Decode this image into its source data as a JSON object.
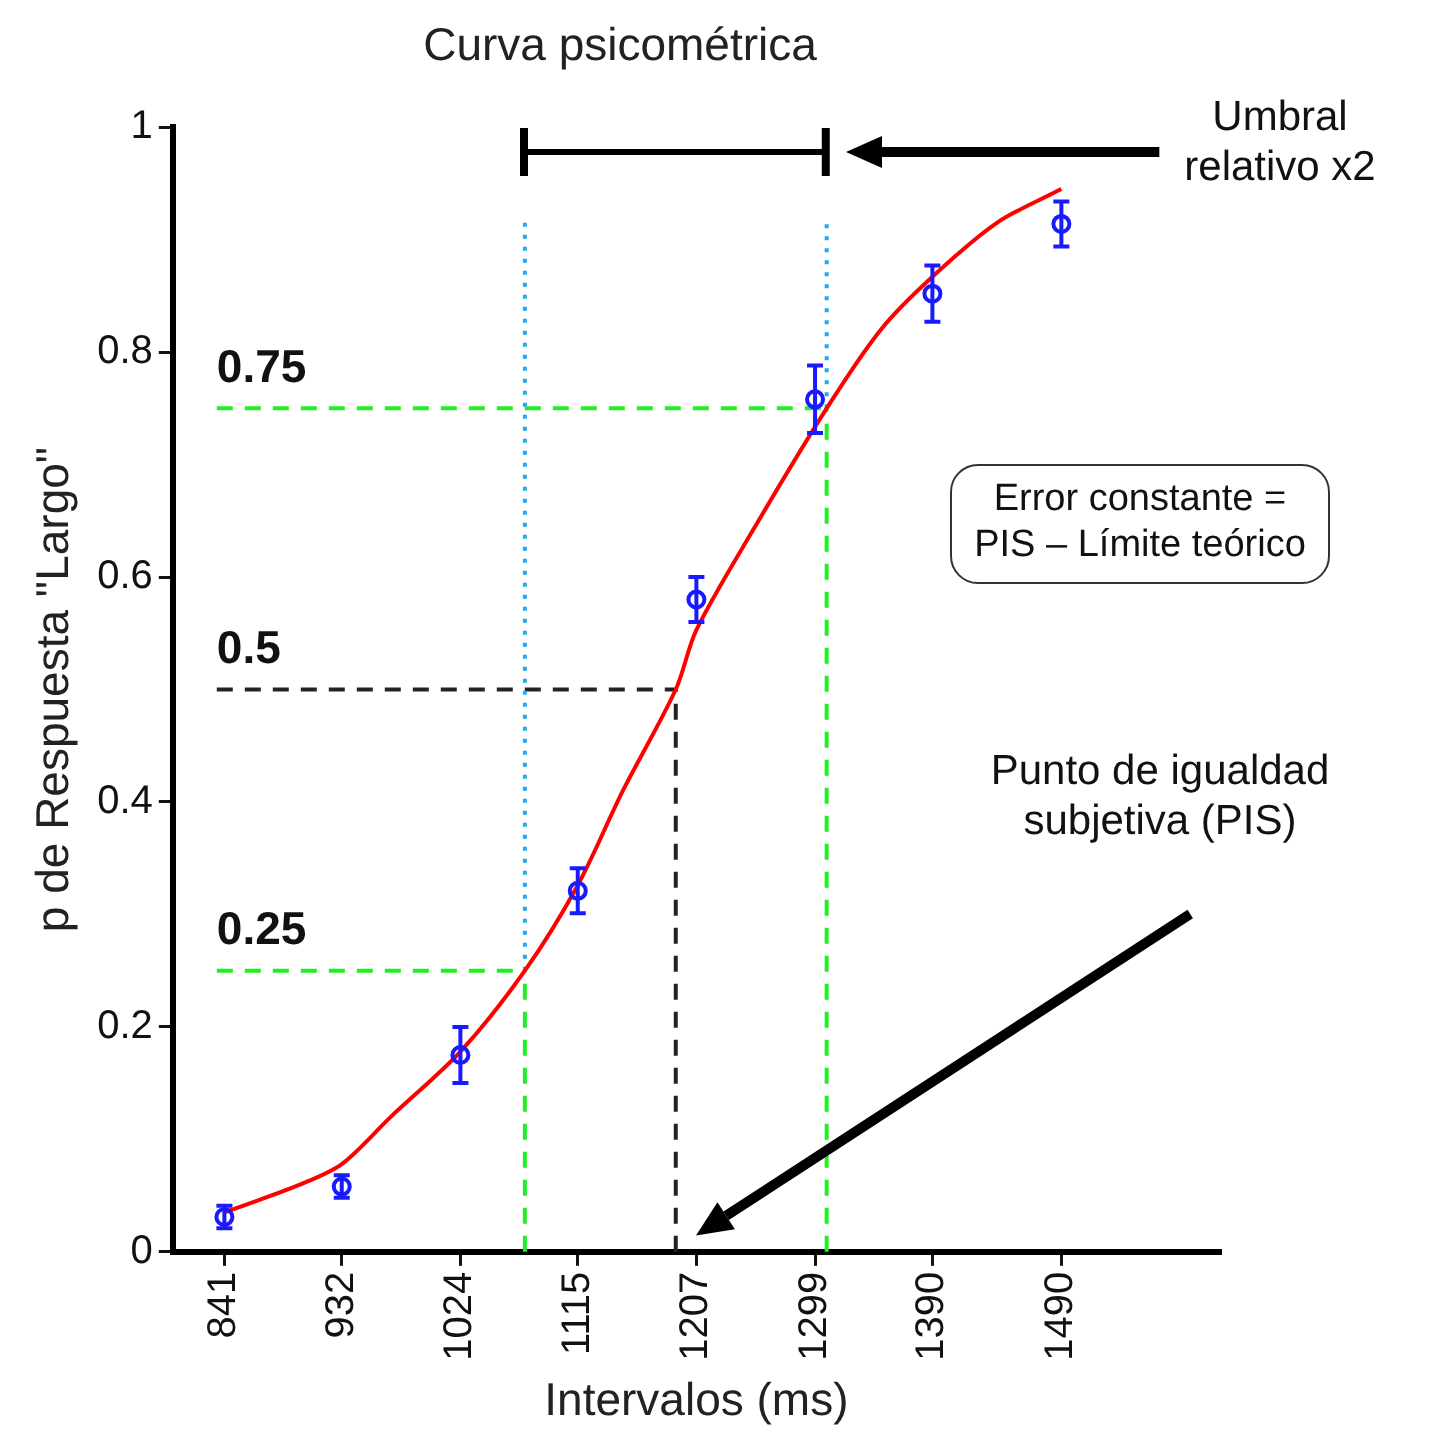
{
  "chart_data": {
    "type": "scatter",
    "title": "Curva psicométrica",
    "xlabel": "Intervalos (ms)",
    "ylabel": "p de Respuesta \"Largo\"",
    "xlim": [
      801,
      1613
    ],
    "xticks": [
      841,
      932,
      1024,
      1115,
      1207,
      1299,
      1390,
      1490
    ],
    "ylim": [
      0,
      1
    ],
    "yticks": [
      0,
      0.2,
      0.4,
      0.6,
      0.8,
      1
    ],
    "grid": false,
    "legend": false,
    "series": [
      {
        "marker": "circle",
        "color": "#1a1aff",
        "x": [
          841,
          932,
          1024,
          1115,
          1207,
          1299,
          1390,
          1490
        ],
        "values": [
          0.031,
          0.058,
          0.175,
          0.321,
          0.58,
          0.758,
          0.852,
          0.914
        ],
        "errors": [
          0.01,
          0.01,
          0.025,
          0.02,
          0.02,
          0.03,
          0.025,
          0.02
        ]
      },
      {
        "type": "line",
        "color": "#ff0000",
        "x": [
          841,
          900,
          932,
          970,
          1024,
          1074,
          1115,
          1150,
          1191,
          1207,
          1250,
          1308,
          1350,
          1390,
          1440,
          1490
        ],
        "values": [
          0.035,
          0.06,
          0.078,
          0.12,
          0.178,
          0.25,
          0.326,
          0.41,
          0.5,
          0.553,
          0.64,
          0.75,
          0.82,
          0.867,
          0.915,
          0.945
        ]
      }
    ],
    "ref_lines": [
      {
        "axis": "y",
        "value": 0.25,
        "label": "0.25",
        "color": "#22ee22",
        "line_style": "dashed"
      },
      {
        "axis": "y",
        "value": 0.5,
        "label": "0.5",
        "color": "#222222",
        "line_style": "dashed"
      },
      {
        "axis": "y",
        "value": 0.75,
        "label": "0.75",
        "color": "#22ee22",
        "line_style": "dashed"
      },
      {
        "axis": "x",
        "value": 1074,
        "color": "#22ee22",
        "line_style": "dashed"
      },
      {
        "axis": "x",
        "value": 1191,
        "color": "#222222",
        "line_style": "dashed"
      },
      {
        "axis": "x",
        "value": 1308,
        "color": "#22ee22",
        "line_style": "dashed"
      },
      {
        "axis": "x",
        "value": 1074,
        "color": "#22aaee",
        "line_style": "dotted"
      },
      {
        "axis": "x",
        "value": 1308,
        "color": "#22aaee",
        "line_style": "dotted"
      }
    ],
    "annotations": [
      "Umbral relativo x2",
      "Error constante = PIS – Límite teórico",
      "Punto de igualdad subjetiva (PIS)"
    ]
  }
}
